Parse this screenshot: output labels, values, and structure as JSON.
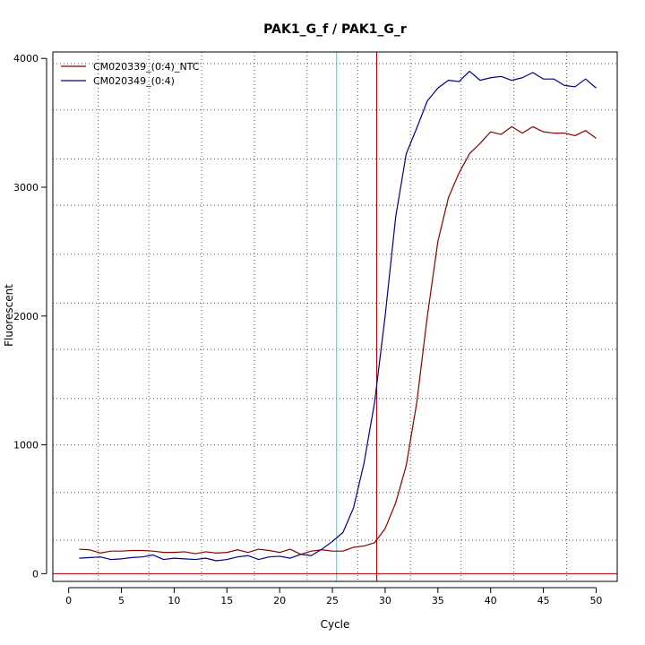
{
  "chart_data": {
    "type": "line",
    "title": "PAK1_G_f / PAK1_G_r",
    "xlabel": "Cycle",
    "ylabel": "Fluorescent",
    "xlim": [
      -1.5,
      52
    ],
    "ylim": [
      -60,
      4050
    ],
    "x_ticks": [
      0,
      5,
      10,
      15,
      20,
      25,
      30,
      35,
      40,
      45,
      50
    ],
    "y_ticks": [
      0,
      1000,
      2000,
      3000,
      4000
    ],
    "grid": true,
    "grid_style": "dotted",
    "grid_x": [
      2.8,
      7.6,
      12.6,
      17.6,
      22.6,
      27.4,
      32.4,
      37.2,
      42.2,
      47.2
    ],
    "grid_y": [
      0,
      260,
      630,
      1000,
      1360,
      1740,
      2100,
      2480,
      2860,
      3220,
      3600,
      3960
    ],
    "legend_position": "top-left",
    "reference_lines": {
      "vertical": [
        {
          "x": 25.4,
          "color": "#00e5e5"
        },
        {
          "x": 29.2,
          "color": "#b00000"
        }
      ],
      "horizontal": [
        {
          "y": 0,
          "color": "#b00000"
        }
      ]
    },
    "series": [
      {
        "name": "CM020339_(0:4)_NTC",
        "color": "#8b0000",
        "x": [
          1,
          2,
          3,
          4,
          5,
          6,
          7,
          8,
          9,
          10,
          11,
          12,
          13,
          14,
          15,
          16,
          17,
          18,
          19,
          20,
          21,
          22,
          23,
          24,
          25,
          26,
          27,
          28,
          29,
          30,
          31,
          32,
          33,
          34,
          35,
          36,
          37,
          38,
          39,
          40,
          41,
          42,
          43,
          44,
          45,
          46,
          47,
          48,
          49,
          50
        ],
        "values": [
          190,
          185,
          160,
          175,
          175,
          180,
          180,
          175,
          165,
          165,
          170,
          155,
          170,
          160,
          165,
          185,
          165,
          190,
          180,
          165,
          190,
          150,
          175,
          185,
          175,
          175,
          205,
          215,
          240,
          350,
          550,
          840,
          1330,
          2000,
          2580,
          2920,
          3110,
          3260,
          3340,
          3430,
          3410,
          3470,
          3420,
          3470,
          3430,
          3420,
          3420,
          3400,
          3440,
          3380
        ]
      },
      {
        "name": "CM020349_(0:4)",
        "color": "#00008b",
        "x": [
          1,
          2,
          3,
          4,
          5,
          6,
          7,
          8,
          9,
          10,
          11,
          12,
          13,
          14,
          15,
          16,
          17,
          18,
          19,
          20,
          21,
          22,
          23,
          24,
          25,
          26,
          27,
          28,
          29,
          30,
          31,
          32,
          33,
          34,
          35,
          36,
          37,
          38,
          39,
          40,
          41,
          42,
          43,
          44,
          45,
          46,
          47,
          48,
          49,
          50
        ],
        "values": [
          120,
          125,
          130,
          110,
          115,
          125,
          130,
          145,
          110,
          120,
          115,
          110,
          120,
          100,
          110,
          130,
          140,
          110,
          130,
          135,
          120,
          150,
          140,
          190,
          250,
          320,
          510,
          860,
          1330,
          2000,
          2770,
          3260,
          3460,
          3670,
          3770,
          3830,
          3820,
          3900,
          3830,
          3850,
          3860,
          3830,
          3850,
          3890,
          3840,
          3840,
          3790,
          3780,
          3840,
          3770
        ]
      }
    ]
  }
}
